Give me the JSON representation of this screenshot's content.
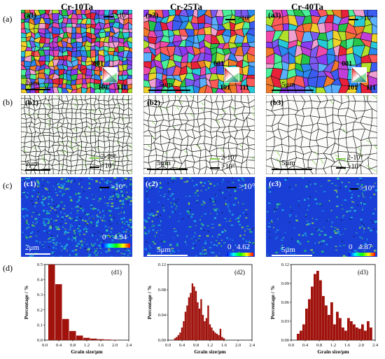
{
  "columns": [
    "Cr-10Ta",
    "Cr-25Ta",
    "Cr-40Ta"
  ],
  "row_labels": [
    "(a)",
    "(b)",
    "(c)",
    "(d)"
  ],
  "panel_tags": {
    "a": [
      "(a1)",
      "(a2)",
      "(a3)"
    ],
    "b": [
      "(b1)",
      "(b2)",
      "(b3)"
    ],
    "c": [
      "(c1)",
      "(c2)",
      "(c3)"
    ],
    "d": [
      "(d1)",
      "(d2)",
      "(d3)"
    ]
  },
  "scale_bars": [
    "2μm",
    "5μm",
    "5μm"
  ],
  "ipf_legend": {
    "angle": ">10°",
    "corners": [
      "001",
      "101",
      "111"
    ]
  },
  "boundary_legend": {
    "low": "2-10°",
    "high": ">10°",
    "low_color": "#7ecf4a",
    "high_color": "#000000"
  },
  "kam": {
    "high": ">10°",
    "min": "0",
    "max": [
      "4.94",
      "4.62",
      "4.87"
    ]
  },
  "colors": {
    "bar": "#a0120c",
    "kam_bg": "#1a3fd6"
  },
  "chart_data": [
    {
      "type": "bar",
      "title": "(d1)",
      "xlabel": "Grain size/μm",
      "ylabel": "Percentage / %",
      "xlim": [
        0.0,
        2.4
      ],
      "ylim": [
        0.0,
        0.5
      ],
      "xticks": [
        "0.0",
        "0.4",
        "0.8",
        "1.2",
        "1.6",
        "2.0",
        "2.4"
      ],
      "yticks": [
        "0.0",
        "0.1",
        "0.2",
        "0.3",
        "0.4",
        "0.5"
      ],
      "bin_width": 0.2,
      "x": [
        0.2,
        0.4,
        0.6,
        0.8,
        1.0,
        1.2,
        1.4,
        1.6,
        1.8,
        2.0
      ],
      "values": [
        0.5,
        0.37,
        0.14,
        0.06,
        0.03,
        0.015,
        0.01,
        0.006,
        0.004,
        0.002
      ]
    },
    {
      "type": "bar",
      "title": "(d2)",
      "xlabel": "Grain size/μm",
      "ylabel": "Percentage / %",
      "xlim": [
        0.0,
        2.4
      ],
      "ylim": [
        0.0,
        0.12
      ],
      "xticks": [
        "0.0",
        "0.4",
        "0.8",
        "1.2",
        "1.6",
        "2.0",
        "2.4"
      ],
      "yticks": [
        "0.00",
        "0.04",
        "0.08",
        "0.12"
      ],
      "bin_width": 0.05,
      "x": [
        0.2,
        0.25,
        0.3,
        0.35,
        0.4,
        0.45,
        0.5,
        0.55,
        0.6,
        0.65,
        0.7,
        0.75,
        0.8,
        0.85,
        0.9,
        0.95,
        1.0,
        1.05,
        1.1,
        1.15,
        1.2,
        1.25,
        1.3,
        1.35,
        1.4,
        1.45,
        1.5,
        1.55,
        1.6
      ],
      "values": [
        0.003,
        0.005,
        0.008,
        0.012,
        0.02,
        0.03,
        0.045,
        0.055,
        0.068,
        0.075,
        0.09,
        0.085,
        0.078,
        0.06,
        0.05,
        0.065,
        0.04,
        0.03,
        0.035,
        0.055,
        0.025,
        0.02,
        0.015,
        0.012,
        0.01,
        0.008,
        0.018,
        0.005,
        0.003
      ]
    },
    {
      "type": "bar",
      "title": "(d3)",
      "xlabel": "Grain size/μm",
      "ylabel": "Percentage / %",
      "xlim": [
        0.0,
        2.4
      ],
      "ylim": [
        0.0,
        0.12
      ],
      "xticks": [
        "0.0",
        "0.4",
        "0.8",
        "1.2",
        "1.6",
        "2.0",
        "2.4"
      ],
      "yticks": [
        "0.00",
        "0.03",
        "0.06",
        "0.09",
        "0.12"
      ],
      "bin_width": 0.08,
      "x": [
        0.2,
        0.28,
        0.36,
        0.44,
        0.52,
        0.6,
        0.68,
        0.76,
        0.84,
        0.92,
        1.0,
        1.08,
        1.16,
        1.24,
        1.32,
        1.4,
        1.48,
        1.56,
        1.64,
        1.72,
        1.8,
        1.88,
        1.96,
        2.04,
        2.12,
        2.2,
        2.28
      ],
      "values": [
        0.01,
        0.015,
        0.025,
        0.05,
        0.065,
        0.085,
        0.105,
        0.11,
        0.095,
        0.07,
        0.055,
        0.04,
        0.06,
        0.025,
        0.045,
        0.035,
        0.02,
        0.015,
        0.035,
        0.03,
        0.025,
        0.02,
        0.018,
        0.025,
        0.015,
        0.03,
        0.02
      ]
    }
  ]
}
